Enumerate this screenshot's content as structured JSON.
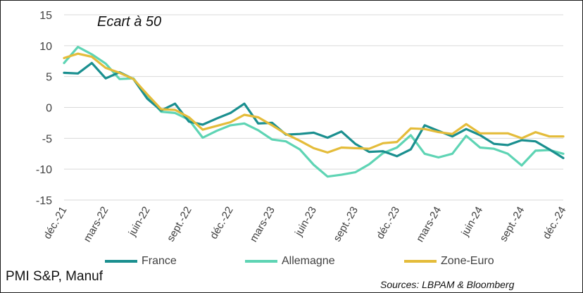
{
  "chart_data": {
    "type": "line",
    "annotation": "Ecart à 50",
    "ylim": [
      -15,
      15
    ],
    "yticks": [
      15,
      10,
      5,
      0,
      -5,
      -10,
      -15
    ],
    "grid": true,
    "legend_position": "bottom",
    "x_tick_labels": [
      "déc.-21",
      "mars-22",
      "juin-22",
      "sept.-22",
      "déc.-22",
      "mars-23",
      "juin-23",
      "sept.-23",
      "déc.-23",
      "mars-24",
      "juin-24",
      "sept.-24",
      "déc.-24"
    ],
    "x_tick_every": 3,
    "series": [
      {
        "name": "France",
        "color": "#1A8F8F",
        "values": [
          5.6,
          5.5,
          7.2,
          4.7,
          5.7,
          4.6,
          1.4,
          -0.5,
          0.6,
          -2.3,
          -2.8,
          -1.8,
          -0.9,
          0.6,
          -2.6,
          -2.5,
          -4.4,
          -4.3,
          -4.1,
          -4.9,
          -3.9,
          -5.9,
          -7.2,
          -7.1,
          -7.9,
          -6.8,
          -2.9,
          -3.8,
          -4.7,
          -3.5,
          -4.5,
          -5.9,
          -6.1,
          -5.3,
          -5.5,
          -6.8,
          -8.2
        ]
      },
      {
        "name": "Allemagne",
        "color": "#5ED4B4",
        "values": [
          7.2,
          9.8,
          8.6,
          7.1,
          4.6,
          4.7,
          1.8,
          -0.7,
          -0.9,
          -2.0,
          -4.9,
          -3.8,
          -2.9,
          -2.6,
          -3.7,
          -5.2,
          -5.5,
          -6.8,
          -9.3,
          -11.2,
          -10.9,
          -10.5,
          -9.2,
          -7.4,
          -6.5,
          -4.5,
          -7.5,
          -8.1,
          -7.5,
          -4.6,
          -6.5,
          -6.7,
          -7.5,
          -9.4,
          -7.0,
          -6.9,
          -7.5
        ]
      },
      {
        "name": "Zone-Euro",
        "color": "#E4BC3A",
        "values": [
          8.0,
          8.7,
          8.2,
          6.4,
          5.6,
          4.6,
          2.1,
          -0.3,
          -0.4,
          -1.6,
          -3.6,
          -3.0,
          -2.4,
          -1.2,
          -1.6,
          -2.9,
          -4.3,
          -5.4,
          -6.6,
          -7.3,
          -6.5,
          -6.6,
          -6.7,
          -5.8,
          -5.6,
          -3.4,
          -3.5,
          -4.0,
          -4.3,
          -2.7,
          -4.2,
          -4.2,
          -4.2,
          -5.0,
          -4.0,
          -4.7,
          -4.7
        ]
      }
    ]
  },
  "footer": {
    "left": "PMI S&P, Manuf",
    "right": "Sources: LBPAM & Bloomberg"
  }
}
